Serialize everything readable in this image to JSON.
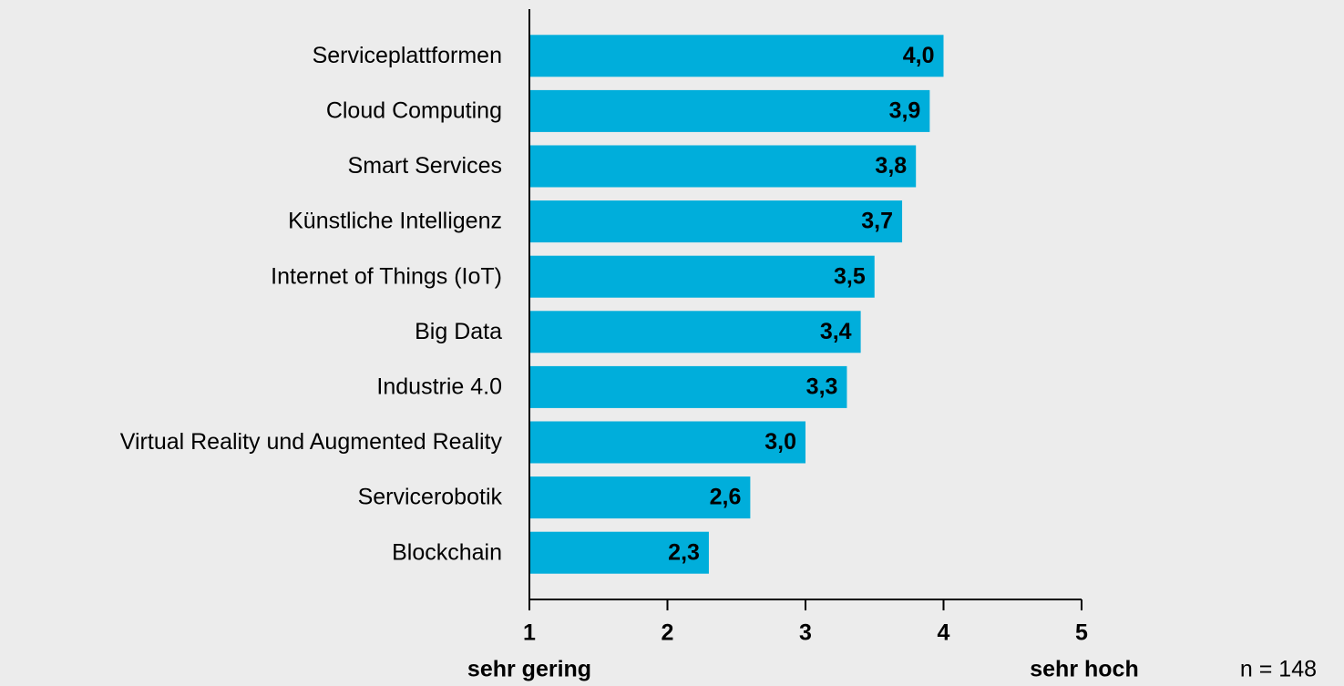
{
  "chart_data": {
    "type": "barh",
    "categories": [
      "Serviceplattformen",
      "Cloud Computing",
      "Smart Services",
      "Künstliche Intelligenz",
      "Internet of Things (IoT)",
      "Big Data",
      "Industrie 4.0",
      "Virtual Reality und Augmented Reality",
      "Servicerobotik",
      "Blockchain"
    ],
    "values": [
      4.0,
      3.9,
      3.8,
      3.7,
      3.5,
      3.4,
      3.3,
      3.0,
      2.6,
      2.3
    ],
    "value_labels": [
      "4,0",
      "3,9",
      "3,8",
      "3,7",
      "3,5",
      "3,4",
      "3,3",
      "3,0",
      "2,6",
      "2,3"
    ],
    "color": "#00aedb",
    "xlim": [
      1,
      5
    ],
    "xticks": [
      1,
      2,
      3,
      4,
      5
    ],
    "x_low_label": "sehr gering",
    "x_high_label": "sehr hoch",
    "note": "n = 148"
  }
}
